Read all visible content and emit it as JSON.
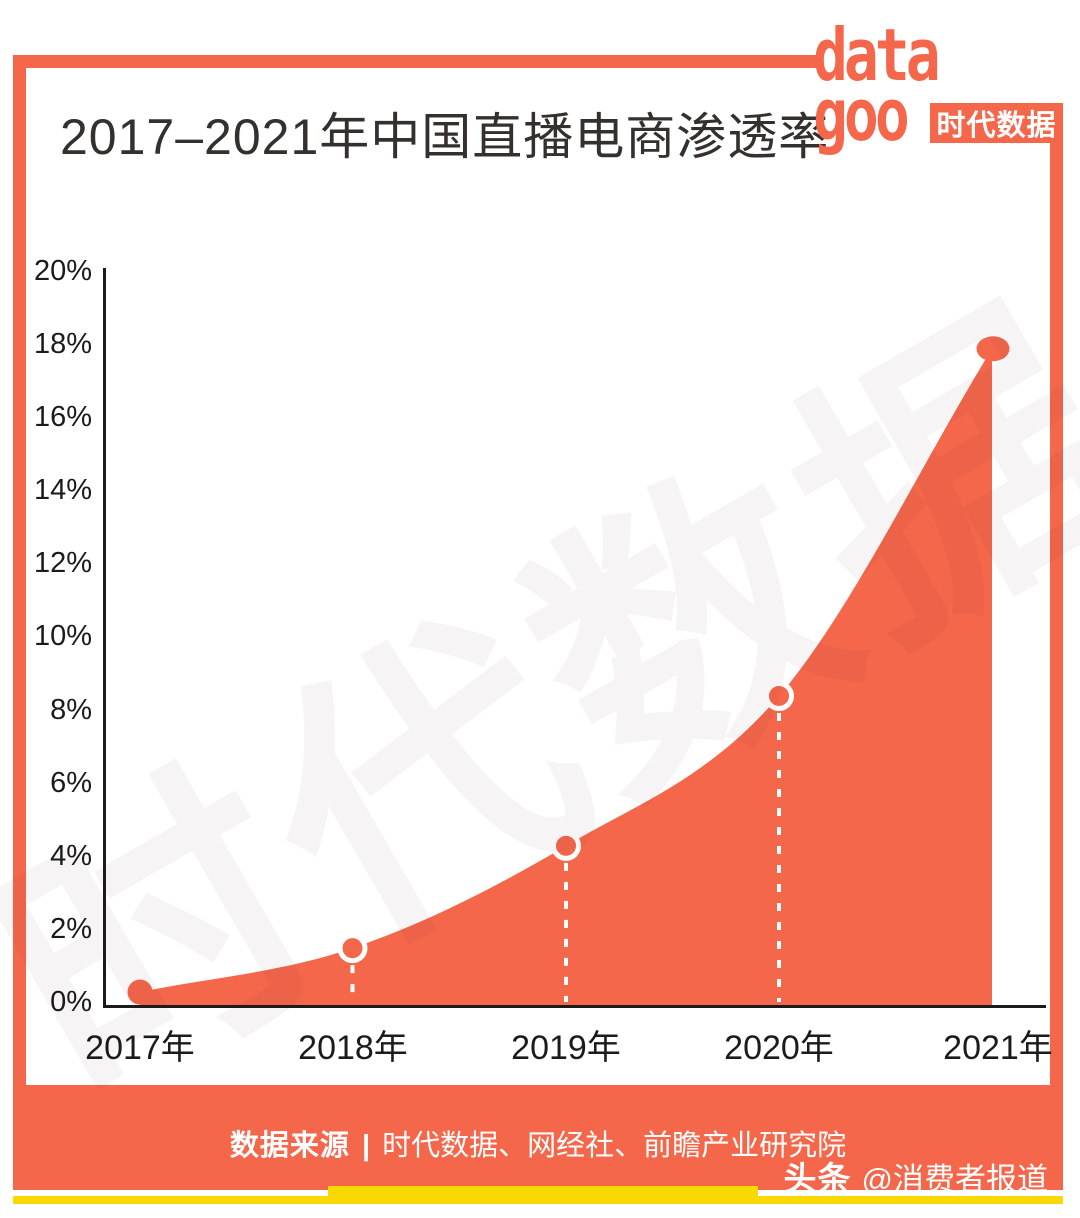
{
  "title": "2017–2021年中国直播电商渗透率",
  "logo": {
    "line1": "data",
    "line2": "goo",
    "badge": "时代数据"
  },
  "watermark": "时代数据",
  "chart_data": {
    "type": "area",
    "title": "2017–2021年中国直播电商渗透率",
    "categories": [
      "2017年",
      "2018年",
      "2019年",
      "2020年",
      "2021年"
    ],
    "values": [
      0.3,
      1.5,
      4.3,
      8.4,
      17.9
    ],
    "unit": "%",
    "xlabel": "",
    "ylabel": "",
    "ylim": [
      0,
      20
    ],
    "ytick_step": 2,
    "ytick_labels": [
      "0%",
      "2%",
      "4%",
      "6%",
      "8%",
      "10%",
      "12%",
      "14%",
      "16%",
      "18%",
      "20%"
    ],
    "grid": false,
    "legend": "none",
    "fill_color": "#F5674B",
    "marker_color": "#F5674B",
    "marker_ring_color": "#FFFFFF",
    "dashed_guide_color": "#FFFFFF",
    "axis_color": "#1B1B1B"
  },
  "footer": {
    "source_label": "数据来源",
    "separator": "|",
    "sources": "时代数据、网经社、前瞻产业研究院",
    "credit_brand": "头条",
    "credit_handle": "@消费者报道"
  },
  "colors": {
    "accent": "#F5674B",
    "yellow": "#F8D903",
    "title_text": "#33302E",
    "axis_text": "#1B1B1B",
    "watermark_tint": "rgba(70,45,35,0.05)"
  }
}
